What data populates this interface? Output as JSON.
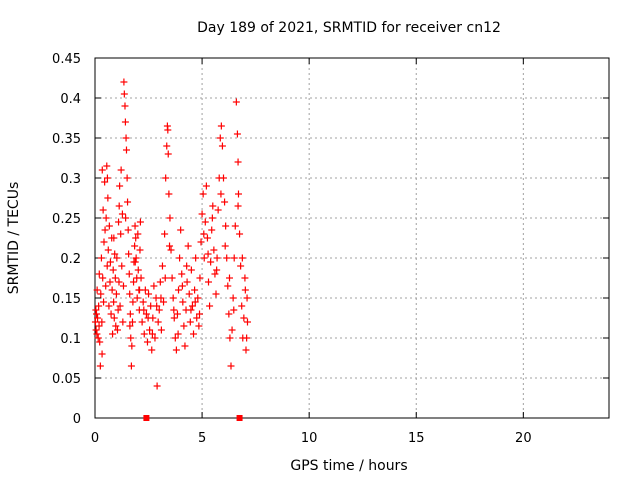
{
  "chart_data": {
    "type": "scatter",
    "title": "Day 189 of 2021, SRMTID for receiver cn12",
    "xlabel": "GPS time / hours",
    "ylabel": "SRMTID / TECUs",
    "xlim": [
      0,
      24
    ],
    "ylim": [
      0,
      0.45
    ],
    "xticks": [
      "0",
      "5",
      "10",
      "15",
      "20"
    ],
    "yticks": [
      "0",
      "0.05",
      "0.1",
      "0.15",
      "0.2",
      "0.25",
      "0.3",
      "0.35",
      "0.4",
      "0.45"
    ],
    "grid": true,
    "marker": "plus",
    "series": [
      {
        "name": "SRMTID",
        "color": "#ff0000",
        "points": [
          [
            0.02,
            0.12
          ],
          [
            0.04,
            0.135
          ],
          [
            0.05,
            0.11
          ],
          [
            0.07,
            0.13
          ],
          [
            0.09,
            0.105
          ],
          [
            0.1,
            0.16
          ],
          [
            0.12,
            0.125
          ],
          [
            0.15,
            0.1
          ],
          [
            0.17,
            0.14
          ],
          [
            0.19,
            0.115
          ],
          [
            0.2,
            0.18
          ],
          [
            0.22,
            0.095
          ],
          [
            0.25,
            0.065
          ],
          [
            0.27,
            0.155
          ],
          [
            0.3,
            0.2
          ],
          [
            0.32,
            0.12
          ],
          [
            0.34,
            0.31
          ],
          [
            0.36,
            0.175
          ],
          [
            0.38,
            0.26
          ],
          [
            0.4,
            0.145
          ],
          [
            0.42,
            0.22
          ],
          [
            0.45,
            0.295
          ],
          [
            0.47,
            0.235
          ],
          [
            0.5,
            0.165
          ],
          [
            0.52,
            0.25
          ],
          [
            0.55,
            0.315
          ],
          [
            0.57,
            0.19
          ],
          [
            0.6,
            0.275
          ],
          [
            0.62,
            0.21
          ],
          [
            0.65,
            0.14
          ],
          [
            0.67,
            0.24
          ],
          [
            0.7,
            0.17
          ],
          [
            0.72,
            0.195
          ],
          [
            0.75,
            0.13
          ],
          [
            0.78,
            0.225
          ],
          [
            0.8,
            0.16
          ],
          [
            0.82,
            0.105
          ],
          [
            0.85,
            0.185
          ],
          [
            0.87,
            0.145
          ],
          [
            0.9,
            0.125
          ],
          [
            0.92,
            0.205
          ],
          [
            0.95,
            0.175
          ],
          [
            0.97,
            0.115
          ],
          [
            1.0,
            0.155
          ],
          [
            1.02,
            0.2
          ],
          [
            1.05,
            0.11
          ],
          [
            1.08,
            0.135
          ],
          [
            1.1,
            0.245
          ],
          [
            1.12,
            0.17
          ],
          [
            1.15,
            0.29
          ],
          [
            1.17,
            0.14
          ],
          [
            1.2,
            0.23
          ],
          [
            1.22,
            0.31
          ],
          [
            1.25,
            0.19
          ],
          [
            1.28,
            0.255
          ],
          [
            1.3,
            0.12
          ],
          [
            1.33,
            0.165
          ],
          [
            1.35,
            0.42
          ],
          [
            1.37,
            0.405
          ],
          [
            1.4,
            0.39
          ],
          [
            1.42,
            0.37
          ],
          [
            1.45,
            0.35
          ],
          [
            1.47,
            0.335
          ],
          [
            1.5,
            0.3
          ],
          [
            1.52,
            0.27
          ],
          [
            1.55,
            0.235
          ],
          [
            1.57,
            0.205
          ],
          [
            1.6,
            0.18
          ],
          [
            1.62,
            0.155
          ],
          [
            1.65,
            0.13
          ],
          [
            1.67,
            0.1
          ],
          [
            1.7,
            0.065
          ],
          [
            1.72,
            0.09
          ],
          [
            1.75,
            0.12
          ],
          [
            1.77,
            0.145
          ],
          [
            1.8,
            0.17
          ],
          [
            1.82,
            0.195
          ],
          [
            1.85,
            0.215
          ],
          [
            1.87,
            0.24
          ],
          [
            1.9,
            0.225
          ],
          [
            1.92,
            0.2
          ],
          [
            1.95,
            0.175
          ],
          [
            1.97,
            0.15
          ],
          [
            2.0,
            0.23
          ],
          [
            2.02,
            0.185
          ],
          [
            2.05,
            0.16
          ],
          [
            2.07,
            0.135
          ],
          [
            2.1,
            0.21
          ],
          [
            2.12,
            0.245
          ],
          [
            2.15,
            0.175
          ],
          [
            2.2,
            0.12
          ],
          [
            2.25,
            0.145
          ],
          [
            2.3,
            0.105
          ],
          [
            2.35,
            0.16
          ],
          [
            2.4,
            0.13
          ],
          [
            2.45,
            0.095
          ],
          [
            2.5,
            0.155
          ],
          [
            2.55,
            0.11
          ],
          [
            2.6,
            0.14
          ],
          [
            2.65,
            0.085
          ],
          [
            2.7,
            0.125
          ],
          [
            2.75,
            0.165
          ],
          [
            2.8,
            0.1
          ],
          [
            2.85,
            0.15
          ],
          [
            2.9,
            0.04
          ],
          [
            2.95,
            0.12
          ],
          [
            3.0,
            0.135
          ],
          [
            3.05,
            0.17
          ],
          [
            3.1,
            0.11
          ],
          [
            3.15,
            0.19
          ],
          [
            3.2,
            0.145
          ],
          [
            3.25,
            0.23
          ],
          [
            3.3,
            0.3
          ],
          [
            3.35,
            0.34
          ],
          [
            3.38,
            0.365
          ],
          [
            3.4,
            0.36
          ],
          [
            3.42,
            0.33
          ],
          [
            3.45,
            0.28
          ],
          [
            3.5,
            0.25
          ],
          [
            3.55,
            0.21
          ],
          [
            3.6,
            0.175
          ],
          [
            3.65,
            0.15
          ],
          [
            3.7,
            0.125
          ],
          [
            3.75,
            0.1
          ],
          [
            3.8,
            0.085
          ],
          [
            3.85,
            0.13
          ],
          [
            3.9,
            0.16
          ],
          [
            3.95,
            0.2
          ],
          [
            4.0,
            0.235
          ],
          [
            4.05,
            0.18
          ],
          [
            4.1,
            0.145
          ],
          [
            4.15,
            0.115
          ],
          [
            4.2,
            0.09
          ],
          [
            4.25,
            0.135
          ],
          [
            4.3,
            0.17
          ],
          [
            4.35,
            0.215
          ],
          [
            4.4,
            0.155
          ],
          [
            4.45,
            0.12
          ],
          [
            4.5,
            0.185
          ],
          [
            4.55,
            0.14
          ],
          [
            4.6,
            0.105
          ],
          [
            4.65,
            0.16
          ],
          [
            4.7,
            0.2
          ],
          [
            4.75,
            0.125
          ],
          [
            4.8,
            0.15
          ],
          [
            4.85,
            0.115
          ],
          [
            4.9,
            0.175
          ],
          [
            4.95,
            0.22
          ],
          [
            5.0,
            0.255
          ],
          [
            5.05,
            0.28
          ],
          [
            5.1,
            0.2
          ],
          [
            5.15,
            0.245
          ],
          [
            5.2,
            0.29
          ],
          [
            5.25,
            0.225
          ],
          [
            5.3,
            0.17
          ],
          [
            5.35,
            0.14
          ],
          [
            5.4,
            0.195
          ],
          [
            5.45,
            0.235
          ],
          [
            5.5,
            0.265
          ],
          [
            5.55,
            0.21
          ],
          [
            5.6,
            0.18
          ],
          [
            5.65,
            0.155
          ],
          [
            5.7,
            0.2
          ],
          [
            5.75,
            0.26
          ],
          [
            5.8,
            0.3
          ],
          [
            5.85,
            0.35
          ],
          [
            5.9,
            0.365
          ],
          [
            5.95,
            0.34
          ],
          [
            6.0,
            0.3
          ],
          [
            6.05,
            0.27
          ],
          [
            6.1,
            0.24
          ],
          [
            6.15,
            0.2
          ],
          [
            6.2,
            0.165
          ],
          [
            6.25,
            0.13
          ],
          [
            6.3,
            0.1
          ],
          [
            6.35,
            0.065
          ],
          [
            6.4,
            0.11
          ],
          [
            6.45,
            0.15
          ],
          [
            6.5,
            0.2
          ],
          [
            6.55,
            0.24
          ],
          [
            6.6,
            0.395
          ],
          [
            6.65,
            0.355
          ],
          [
            6.68,
            0.32
          ],
          [
            6.7,
            0.28
          ],
          [
            6.75,
            0.23
          ],
          [
            6.8,
            0.19
          ],
          [
            6.85,
            0.14
          ],
          [
            6.9,
            0.1
          ],
          [
            6.95,
            0.125
          ],
          [
            7.0,
            0.175
          ],
          [
            7.05,
            0.085
          ],
          [
            7.08,
            0.1
          ],
          [
            7.1,
            0.15
          ],
          [
            7.12,
            0.12
          ],
          [
            0.33,
            0.08
          ],
          [
            0.58,
            0.3
          ],
          [
            0.88,
            0.225
          ],
          [
            1.13,
            0.265
          ],
          [
            1.43,
            0.25
          ],
          [
            1.63,
            0.115
          ],
          [
            1.88,
            0.195
          ],
          [
            2.08,
            0.16
          ],
          [
            2.28,
            0.135
          ],
          [
            2.48,
            0.125
          ],
          [
            2.68,
            0.105
          ],
          [
            2.88,
            0.14
          ],
          [
            3.08,
            0.15
          ],
          [
            3.28,
            0.175
          ],
          [
            3.48,
            0.215
          ],
          [
            3.68,
            0.135
          ],
          [
            3.88,
            0.105
          ],
          [
            4.08,
            0.165
          ],
          [
            4.28,
            0.19
          ],
          [
            4.48,
            0.135
          ],
          [
            4.68,
            0.145
          ],
          [
            4.88,
            0.13
          ],
          [
            5.08,
            0.23
          ],
          [
            5.28,
            0.205
          ],
          [
            5.48,
            0.25
          ],
          [
            5.68,
            0.185
          ],
          [
            5.88,
            0.28
          ],
          [
            6.08,
            0.215
          ],
          [
            6.28,
            0.175
          ],
          [
            6.48,
            0.135
          ],
          [
            6.68,
            0.265
          ],
          [
            6.88,
            0.2
          ],
          [
            7.02,
            0.16
          ]
        ]
      }
    ],
    "zero_markers": [
      2.4,
      6.75
    ]
  }
}
